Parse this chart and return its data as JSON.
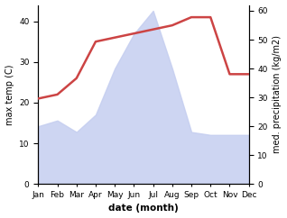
{
  "months": [
    "Jan",
    "Feb",
    "Mar",
    "Apr",
    "May",
    "Jun",
    "Jul",
    "Aug",
    "Sep",
    "Oct",
    "Nov",
    "Dec"
  ],
  "x": [
    1,
    2,
    3,
    4,
    5,
    6,
    7,
    8,
    9,
    10,
    11,
    12
  ],
  "temperature": [
    21,
    22,
    26,
    35,
    36,
    37,
    38,
    39,
    41,
    41,
    27,
    27
  ],
  "precipitation": [
    20,
    22,
    18,
    24,
    40,
    52,
    60,
    40,
    18,
    17,
    17,
    17
  ],
  "temp_color": "#cc4444",
  "precip_fill_color": "#c5cef0",
  "precip_fill_alpha": 0.85,
  "temp_ylim": [
    0,
    44
  ],
  "precip_ylim": [
    0,
    62
  ],
  "temp_yticks": [
    0,
    10,
    20,
    30,
    40
  ],
  "precip_yticks": [
    0,
    10,
    20,
    30,
    40,
    50,
    60
  ],
  "xlabel": "date (month)",
  "ylabel_left": "max temp (C)",
  "ylabel_right": "med. precipitation (kg/m2)",
  "fig_width": 3.18,
  "fig_height": 2.42,
  "background_color": "#ffffff",
  "linewidth": 1.8,
  "label_fontsize": 7,
  "tick_fontsize": 6.5,
  "xlabel_fontsize": 7.5
}
